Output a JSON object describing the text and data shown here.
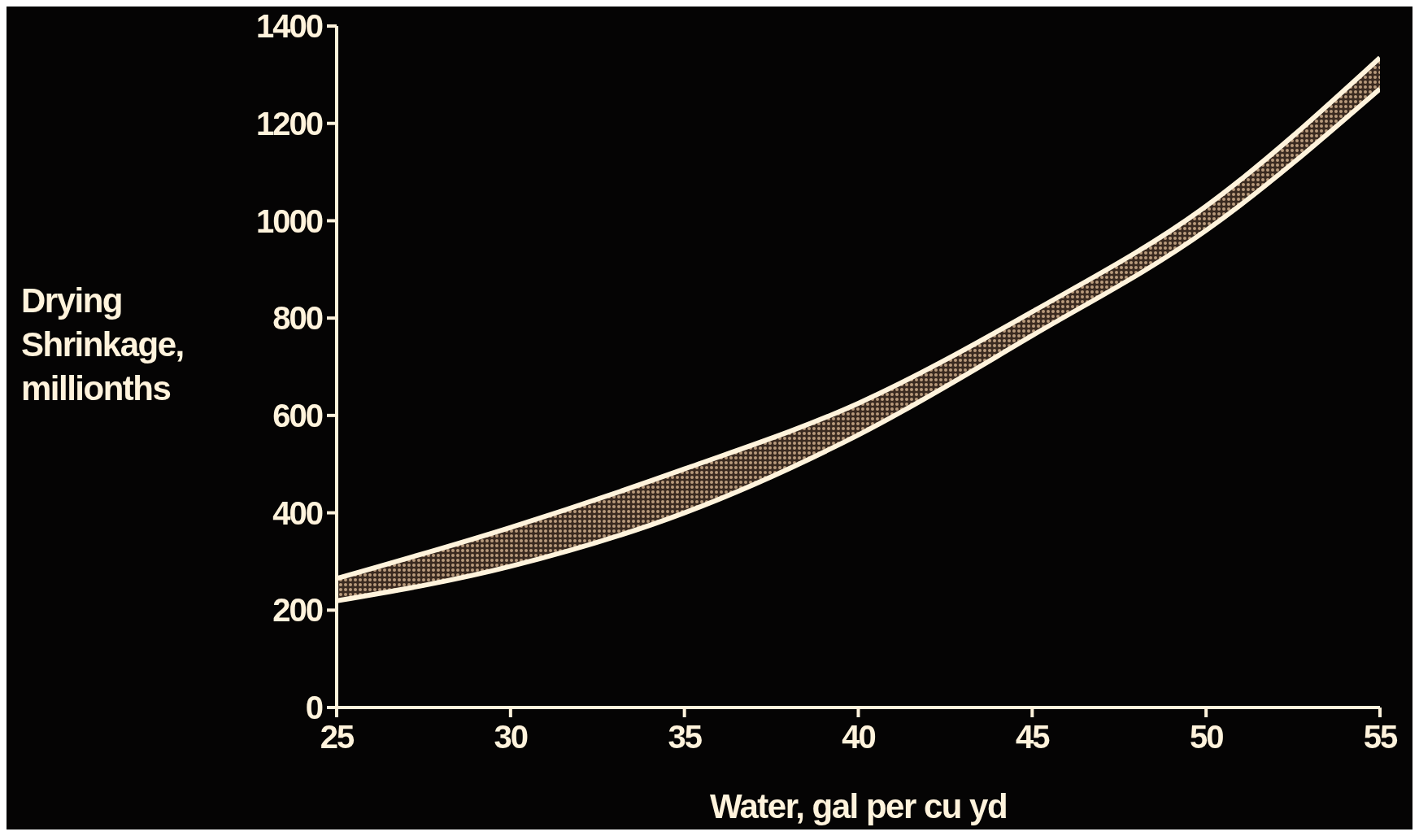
{
  "chart_data": {
    "type": "line",
    "xlabel": "Water, gal per cu yd",
    "ylabel": "Drying\nShrinkage,\nmillionths",
    "x": [
      25,
      30,
      35,
      40,
      45,
      50,
      55
    ],
    "series": [
      {
        "color": "#fff3dc",
        "values": [
          265,
          370,
          490,
          625,
          813,
          1030,
          1335
        ],
        "lower": [
          219,
          290,
          400,
          560,
          764,
          980,
          1271
        ],
        "upper": [
          265,
          370,
          490,
          625,
          813,
          1030,
          1335
        ]
      },
      {
        "color": "#fff3dc",
        "values": [
          219,
          290,
          400,
          560,
          764,
          980,
          1271
        ]
      }
    ],
    "xlim": [
      25,
      55
    ],
    "xticks": [
      25,
      30,
      35,
      40,
      45,
      50,
      55
    ],
    "ylim": [
      0,
      1400
    ],
    "yticks": [
      0,
      200,
      400,
      600,
      800,
      1000,
      1200,
      1400
    ],
    "marker": "none",
    "line_style": "solid"
  }
}
